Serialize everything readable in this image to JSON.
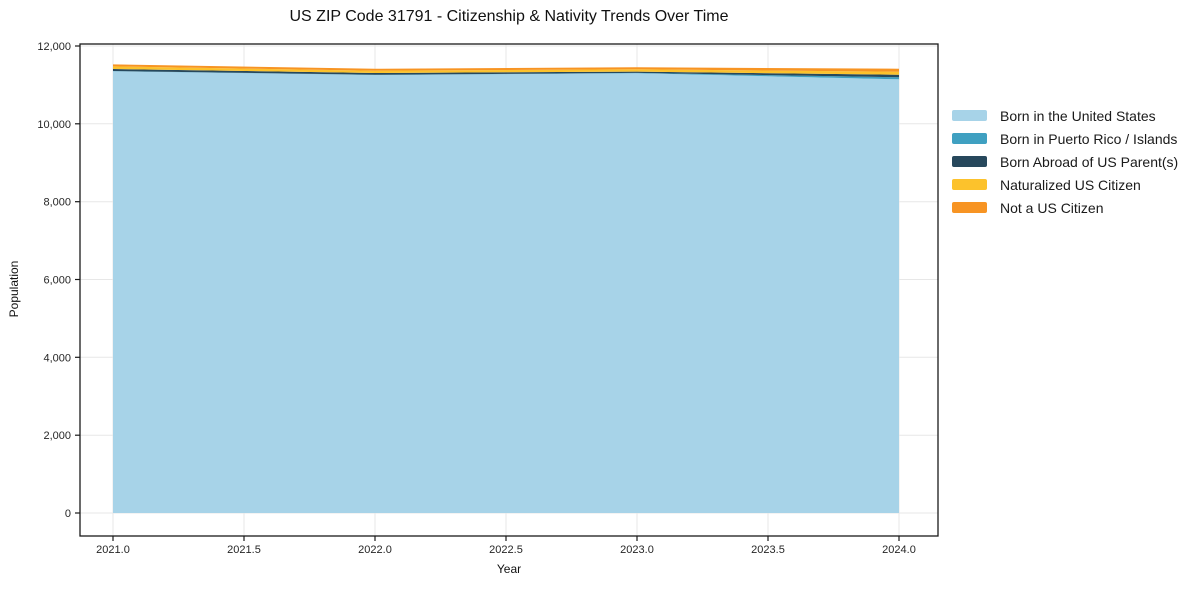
{
  "chart_data": {
    "type": "area",
    "stacked": true,
    "title": "US ZIP Code 31791 - Citizenship & Nativity Trends Over Time",
    "xlabel": "Year",
    "ylabel": "Population",
    "x": [
      2021,
      2022,
      2023,
      2024
    ],
    "series": [
      {
        "name": "Born in the United States",
        "color": "#A7D3E8",
        "values": [
          11350,
          11255,
          11300,
          11145
        ]
      },
      {
        "name": "Born in Puerto Rico / Islands",
        "color": "#3FA0C1",
        "values": [
          8,
          6,
          9,
          50
        ]
      },
      {
        "name": "Born Abroad of US Parent(s)",
        "color": "#27485C",
        "values": [
          52,
          45,
          34,
          68
        ]
      },
      {
        "name": "Naturalized US Citizen",
        "color": "#FCC22C",
        "values": [
          67,
          59,
          58,
          77
        ]
      },
      {
        "name": "Not a US Citizen",
        "color": "#F79423",
        "values": [
          51,
          50,
          51,
          77
        ]
      }
    ],
    "xticks": [
      2021.0,
      2021.5,
      2022.0,
      2022.5,
      2023.0,
      2023.5,
      2024.0
    ],
    "xtick_labels": [
      "2021.0",
      "2021.5",
      "2022.0",
      "2022.5",
      "2023.0",
      "2023.5",
      "2024.0"
    ],
    "yticks": [
      0,
      2000,
      4000,
      6000,
      8000,
      10000,
      12000
    ],
    "ytick_labels": [
      "0",
      "2,000",
      "4,000",
      "6,000",
      "8,000",
      "10,000",
      "12,000"
    ],
    "xlim": [
      2020.87,
      2024.15
    ],
    "ylim": [
      0,
      12000
    ],
    "grid": true,
    "legend_position": "right",
    "colors": {
      "grid": "#E7E7E7",
      "frame": "#1A1A1A",
      "background": "#FFFFFF",
      "tick_text": "#262626"
    }
  }
}
